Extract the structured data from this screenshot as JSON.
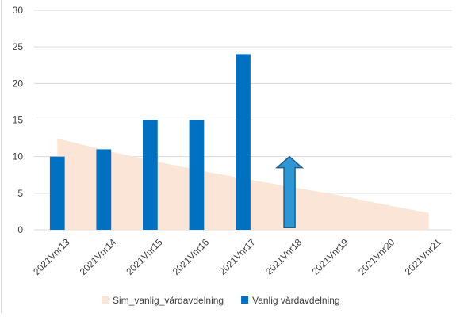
{
  "chart_data": {
    "type": "bar",
    "categories": [
      "2021Vnr13",
      "2021Vnr14",
      "2021Vnr15",
      "2021Vnr16",
      "2021Vnr17",
      "2021Vnr18",
      "2021Vnr19",
      "2021Vnr20",
      "2021Vnr21"
    ],
    "series": [
      {
        "name": "Sim_vanlig_vårdavdelning",
        "kind": "area",
        "color": "#fbe5d6",
        "values": [
          12.5,
          10.9,
          9.5,
          8.2,
          7.0,
          5.9,
          4.8,
          3.5,
          2.3
        ]
      },
      {
        "name": "Vanlig vårdavdelning",
        "kind": "bar",
        "color": "#0070c0",
        "values": [
          10,
          11,
          15,
          15,
          24,
          null,
          null,
          null,
          null
        ]
      }
    ],
    "annotations": [
      {
        "type": "up-arrow",
        "category": "2021Vnr18",
        "from": 0.3,
        "to": 10.0,
        "fill": "#2e96d4",
        "stroke": "#1f5f86"
      }
    ],
    "yticks": [
      0,
      5,
      10,
      15,
      20,
      25,
      30
    ],
    "ylim": [
      0,
      30
    ],
    "grid": true,
    "legend": "bottom",
    "title": "",
    "xlabel": "",
    "ylabel": ""
  }
}
